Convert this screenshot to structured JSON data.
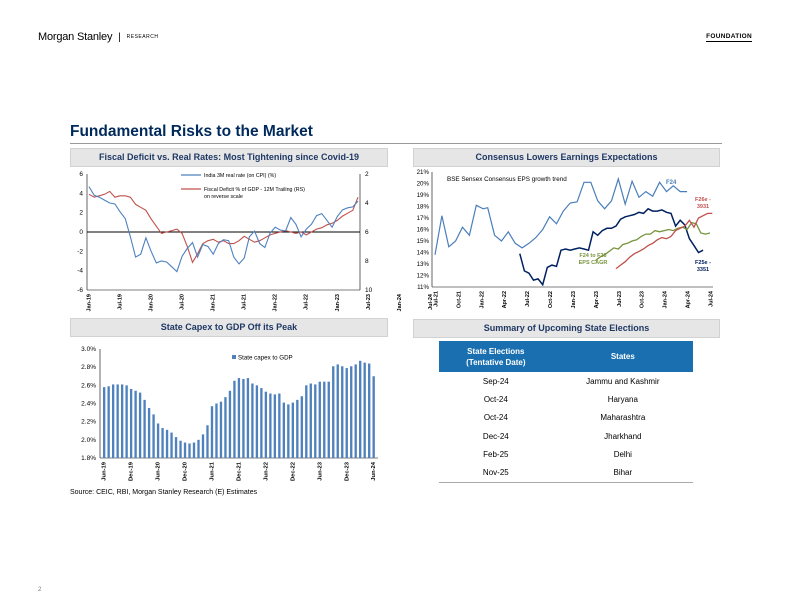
{
  "header": {
    "brand": "Morgan Stanley",
    "brand_sub": "RESEARCH",
    "tag": "FOUNDATION"
  },
  "slide_title": "Fundamental Risks to the Market",
  "source_note": "Source: CEIC, RBI, Morgan Stanley Research (E) Estimates",
  "page_number": "2",
  "colors": {
    "navy": "#002a5c",
    "real_rate": "#4f81bd",
    "deficit": "#c0504d",
    "bar": "#4f81bd",
    "f24": "#4a7ebb",
    "f25": "#002060",
    "f26": "#c0504d",
    "cagr": "#77933c",
    "table_header": "#1a6fb0"
  },
  "panels": {
    "p1": "Fiscal Deficit vs. Real Rates: Most Tightening since Covid-19",
    "p2": "Consensus Lowers Earnings Expectations",
    "p3": "State Capex to GDP Off its Peak",
    "p4": "Summary of Upcoming State Elections"
  },
  "chart_data": [
    {
      "type": "line",
      "x_ticks": [
        "Jan-19",
        "Jul-19",
        "Jan-20",
        "Jul-20",
        "Jan-21",
        "Jul-21",
        "Jan-22",
        "Jul-22",
        "Jan-23",
        "Jul-23",
        "Jan-24",
        "Jul-24"
      ],
      "ylim": [
        -6,
        6
      ],
      "y_ticks": [
        "6",
        "4",
        "2",
        "0",
        "-2",
        "-4",
        "-6"
      ],
      "y2lim": [
        2,
        10
      ],
      "y2_reversed": true,
      "y2_ticks": [
        "2",
        "4",
        "6",
        "8",
        "10"
      ],
      "zero_line": 0,
      "legend_position": "top-center",
      "series": [
        {
          "name": "India 3M real rate (on CPI) (%)",
          "axis": "left",
          "values": [
            4.7,
            3.8,
            3.6,
            3.3,
            3.0,
            2.9,
            2.1,
            1.4,
            -0.5,
            -2.6,
            -2.3,
            -0.6,
            -2.0,
            -3.2,
            -3.0,
            -3.1,
            -3.6,
            -4.1,
            -2.5,
            -1.7,
            -1.1,
            -2.6,
            -1.3,
            -1.5,
            -2.3,
            -1.2,
            -0.8,
            -0.9,
            -2.6,
            -3.3,
            -2.7,
            -0.5,
            0.1,
            -1.2,
            -1.6,
            -0.1,
            0.5,
            0.2,
            0.1,
            1.5,
            0.8,
            -0.5,
            0.3,
            0.8,
            1.7,
            1.9,
            1.2,
            0.5,
            1.6,
            2.3,
            2.5,
            2.6,
            3.2
          ]
        },
        {
          "name": "Fiscal Deficit % of GDP - 12M Trailing (RS) on reverse scale",
          "axis": "right",
          "values": [
            3.4,
            3.6,
            3.5,
            3.4,
            3.2,
            3.6,
            3.5,
            3.5,
            3.6,
            4.1,
            4.3,
            4.5,
            5.1,
            5.6,
            6.1,
            6.0,
            5.9,
            5.8,
            6.1,
            7.0,
            8.1,
            7.5,
            6.8,
            6.6,
            6.5,
            6.7,
            6.6,
            6.8,
            6.8,
            6.6,
            6.3,
            6.5,
            6.7,
            6.6,
            6.4,
            6.2,
            6.1,
            6.0,
            5.9,
            6.0,
            6.1,
            6.0,
            6.2,
            6.0,
            5.8,
            5.7,
            5.5,
            5.4,
            5.2,
            4.9,
            4.7,
            4.5,
            3.6
          ]
        }
      ]
    },
    {
      "type": "line",
      "annotation": "BSE Sensex Consensus EPS growth trend",
      "x_ticks": [
        "Jul-21",
        "Oct-21",
        "Jan-22",
        "Apr-22",
        "Jul-22",
        "Oct-22",
        "Jan-23",
        "Apr-23",
        "Jul-23",
        "Oct-23",
        "Jan-24",
        "Apr-24",
        "Jul-24"
      ],
      "ylim": [
        11,
        21
      ],
      "y_ticks": [
        "21%",
        "20%",
        "19%",
        "18%",
        "17%",
        "16%",
        "15%",
        "14%",
        "13%",
        "12%",
        "11%"
      ],
      "labels": {
        "f24": "F24",
        "f24_to_f26": "F24 to F26\nEPS CAGR",
        "f26": "F26e -\n3931",
        "f25": "F25e -\n3351"
      },
      "series": [
        {
          "name": "F24",
          "x": [
            0.0,
            0.3,
            0.6,
            0.9,
            1.2,
            1.5,
            1.8,
            2.1,
            2.3,
            2.6,
            2.9,
            3.2,
            3.5,
            3.8,
            4.1,
            4.4,
            4.7,
            5.0,
            5.3,
            5.6,
            5.9,
            6.2,
            6.5,
            6.8,
            7.1,
            7.4,
            7.7,
            8.0,
            8.3,
            8.6,
            8.9,
            9.2,
            9.5,
            9.8,
            10.1,
            10.4,
            10.7,
            11.0
          ],
          "values": [
            13.8,
            17.2,
            14.5,
            15.0,
            16.2,
            15.5,
            18.1,
            17.8,
            17.9,
            15.5,
            15.0,
            15.8,
            14.8,
            14.4,
            14.8,
            15.3,
            16.0,
            17.1,
            16.5,
            17.6,
            18.3,
            18.4,
            20.1,
            20.1,
            18.5,
            17.8,
            18.5,
            20.4,
            18.2,
            20.2,
            18.8,
            19.3,
            18.9,
            20.1,
            19.3,
            19.8,
            19.3,
            19.3
          ]
        },
        {
          "name": "F25",
          "x": [
            3.7,
            3.9,
            4.1,
            4.3,
            4.5,
            4.7,
            4.9,
            5.1,
            5.3,
            5.5,
            5.7,
            5.9,
            6.1,
            6.3,
            6.5,
            6.7,
            6.9,
            7.1,
            7.3,
            7.5,
            7.7,
            7.9,
            8.1,
            8.3,
            8.5,
            8.7,
            8.9,
            9.1,
            9.3,
            9.5,
            9.7,
            9.9,
            10.1,
            10.3,
            10.5,
            10.7,
            10.9,
            11.1,
            11.3,
            11.5,
            11.7
          ],
          "values": [
            13.9,
            12.4,
            12.2,
            11.6,
            11.7,
            11.2,
            12.7,
            12.9,
            12.8,
            14.2,
            14.3,
            14.2,
            14.3,
            14.4,
            14.3,
            14.2,
            15.8,
            15.5,
            15.9,
            16.1,
            16.1,
            16.3,
            16.9,
            17.1,
            17.2,
            17.3,
            17.5,
            17.4,
            17.8,
            17.6,
            17.6,
            17.7,
            17.5,
            17.4,
            16.3,
            16.8,
            16.4,
            15.2,
            14.6,
            14.0,
            14.2
          ]
        },
        {
          "name": "F24 to F26 EPS CAGR",
          "x": [
            7.0,
            7.2,
            7.4,
            7.6,
            7.8,
            8.0,
            8.2,
            8.4,
            8.6,
            8.8,
            9.0,
            9.2,
            9.4,
            9.6,
            9.8,
            10.0,
            10.2,
            10.4,
            10.6,
            10.8,
            11.0,
            11.2,
            11.4,
            11.6,
            11.8,
            12.0
          ],
          "values": [
            13.3,
            13.6,
            13.8,
            14.1,
            14.4,
            14.3,
            14.7,
            14.8,
            15.0,
            15.1,
            15.4,
            15.6,
            15.6,
            15.9,
            15.8,
            15.9,
            16.0,
            15.9,
            16.1,
            16.2,
            16.0,
            16.6,
            16.5,
            15.7,
            15.6,
            15.7
          ]
        },
        {
          "name": "F26",
          "x": [
            7.9,
            8.1,
            8.3,
            8.5,
            8.7,
            8.9,
            9.1,
            9.3,
            9.5,
            9.7,
            9.9,
            10.1,
            10.3,
            10.5,
            10.7,
            10.9,
            11.1,
            11.3,
            11.5,
            11.7,
            11.9,
            12.1
          ],
          "values": [
            12.6,
            12.9,
            13.2,
            13.6,
            13.9,
            14.1,
            14.3,
            14.6,
            14.8,
            15.1,
            15.3,
            15.2,
            15.4,
            15.9,
            16.1,
            16.3,
            16.8,
            16.2,
            17.0,
            17.2,
            17.4,
            17.4
          ]
        }
      ]
    },
    {
      "type": "bar",
      "legend": "State capex to GDP",
      "legend_position": "top-center",
      "ylim": [
        1.8,
        3.0
      ],
      "y_ticks": [
        "3.0%",
        "2.8%",
        "2.6%",
        "2.4%",
        "2.2%",
        "2.0%",
        "1.8%"
      ],
      "x_ticks": [
        "Jun-19",
        "Dec-19",
        "Jun-20",
        "Dec-20",
        "Jun-21",
        "Dec-21",
        "Jun-22",
        "Dec-22",
        "Jun-23",
        "Dec-23",
        "Jun-24"
      ],
      "values": [
        2.58,
        2.59,
        2.61,
        2.61,
        2.61,
        2.6,
        2.56,
        2.54,
        2.52,
        2.44,
        2.35,
        2.28,
        2.18,
        2.13,
        2.11,
        2.08,
        2.03,
        1.99,
        1.97,
        1.96,
        1.97,
        2.0,
        2.06,
        2.16,
        2.37,
        2.4,
        2.42,
        2.47,
        2.54,
        2.65,
        2.68,
        2.67,
        2.68,
        2.62,
        2.6,
        2.57,
        2.53,
        2.51,
        2.5,
        2.51,
        2.41,
        2.39,
        2.41,
        2.44,
        2.48,
        2.6,
        2.62,
        2.61,
        2.64,
        2.64,
        2.64,
        2.81,
        2.83,
        2.81,
        2.79,
        2.81,
        2.83,
        2.87,
        2.85,
        2.84,
        2.7
      ]
    }
  ],
  "elections": {
    "headers": [
      "State Elections\n(Tentative Date)",
      "States"
    ],
    "rows": [
      {
        "date": "Sep-24",
        "state": "Jammu and Kashmir"
      },
      {
        "date": "Oct-24",
        "state": "Haryana"
      },
      {
        "date": "Oct-24",
        "state": "Maharashtra"
      },
      {
        "date": "Dec-24",
        "state": "Jharkhand"
      },
      {
        "date": "Feb-25",
        "state": "Delhi"
      },
      {
        "date": "Nov-25",
        "state": "Bihar"
      }
    ]
  }
}
